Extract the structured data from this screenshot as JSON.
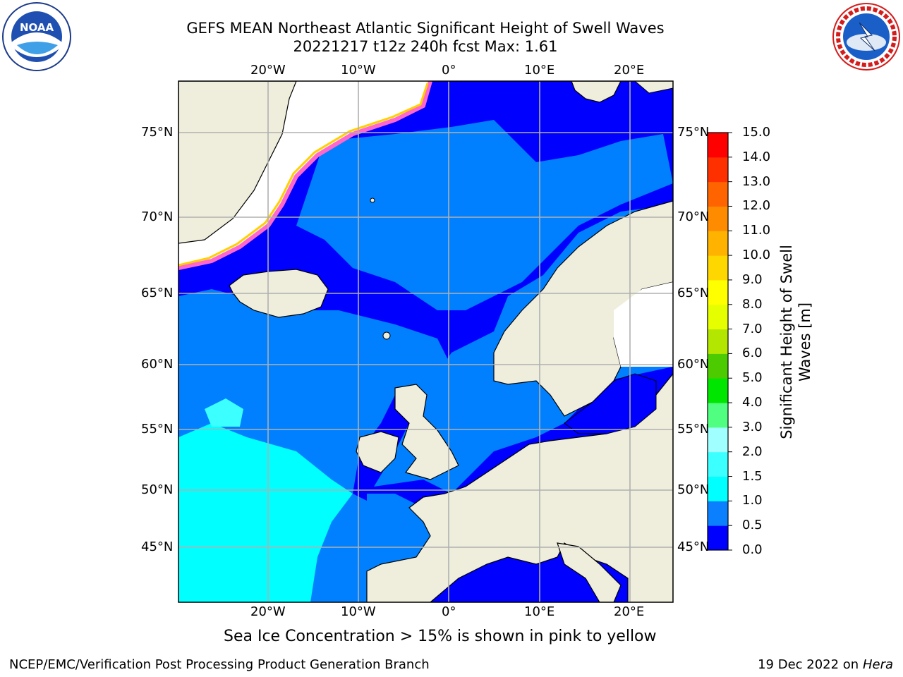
{
  "header": {
    "title_line1": "GEFS MEAN Northeast Atlantic Significant Height of Swell Waves",
    "title_line2": "20221217 t12z 240h fcst   Max: 1.61"
  },
  "logos": {
    "left": {
      "name": "NOAA",
      "ring_text": "NATIONAL OCEANIC AND ATMOSPHERIC ADMINISTRATION · U.S. DEPARTMENT OF COMMERCE"
    },
    "right": {
      "ring_text": "NATIONAL WEATHER SERVICE"
    }
  },
  "map": {
    "lon_ticks": [
      "20°W",
      "10°W",
      "0°",
      "10°E",
      "20°E"
    ],
    "lat_ticks": [
      "75°N",
      "70°N",
      "65°N",
      "60°N",
      "55°N",
      "50°N",
      "45°N"
    ],
    "colors": {
      "land": "#efeedd",
      "ice_free_no_data": "#ffffff",
      "grid": "#b0b0b0",
      "coast": "#000000"
    },
    "legend_levels": [
      {
        "label": "0.0"
      },
      {
        "label": "0.5"
      },
      {
        "label": "1.0"
      },
      {
        "label": "1.5"
      },
      {
        "label": "2.0"
      },
      {
        "label": "3.0"
      },
      {
        "label": "4.0"
      },
      {
        "label": "5.0"
      },
      {
        "label": "6.0"
      },
      {
        "label": "7.0"
      },
      {
        "label": "8.0"
      },
      {
        "label": "9.0"
      },
      {
        "label": "10.0"
      },
      {
        "label": "11.0"
      },
      {
        "label": "12.0"
      },
      {
        "label": "13.0"
      },
      {
        "label": "14.0"
      },
      {
        "label": "15.0"
      }
    ],
    "legend_colors": [
      "#0000ff",
      "#0a80ff",
      "#00ffff",
      "#3cffff",
      "#a0ffff",
      "#50ff80",
      "#00e600",
      "#4ccc00",
      "#b3e600",
      "#e6ff00",
      "#ffff00",
      "#ffd700",
      "#ffb300",
      "#ff8c00",
      "#ff6400",
      "#ff3000",
      "#ff0000"
    ],
    "colorbar_title_line1": "Significant Height of Swell",
    "colorbar_title_line2": "Waves [m]"
  },
  "footer": {
    "ice_note": "Sea Ice Concentration > 15% is shown in pink to yellow",
    "branch": "NCEP/EMC/Verification Post Processing Product Generation Branch",
    "date_prefix": "19 Dec 2022 on",
    "host": "Hera"
  }
}
